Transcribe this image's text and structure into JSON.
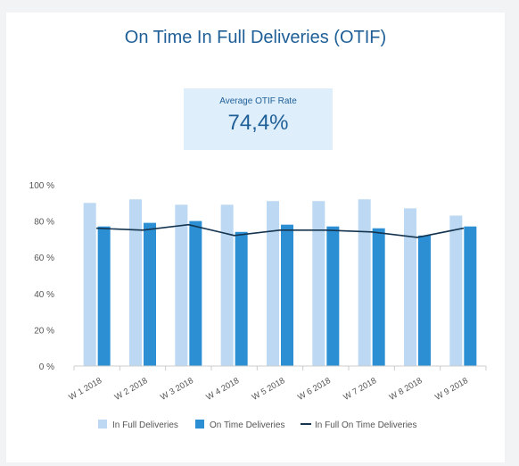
{
  "title": "On Time In Full Deliveries (OTIF)",
  "kpi": {
    "label": "Average OTIF Rate",
    "value": "74,4%"
  },
  "colors": {
    "in_full": "#bcd8f2",
    "on_time": "#2c8fd4",
    "otif_line": "#14344f",
    "title": "#1f5f97",
    "axis_text": "#555555",
    "kpi_bg": "#deeefb"
  },
  "chart_data": {
    "type": "bar",
    "categories": [
      "W 1 2018",
      "W 2 2018",
      "W 3 2018",
      "W 4 2018",
      "W 5 2018",
      "W 6 2018",
      "W 7 2018",
      "W 8 2018",
      "W 9 2018"
    ],
    "series": [
      {
        "name": "In Full Deliveries",
        "type": "bar",
        "values": [
          90,
          92,
          89,
          89,
          91,
          91,
          92,
          87,
          83
        ]
      },
      {
        "name": "On Time Deliveries",
        "type": "bar",
        "values": [
          77,
          79,
          80,
          74,
          78,
          77,
          76,
          72,
          77
        ]
      },
      {
        "name": "In Full On Time Deliveries",
        "type": "line",
        "values": [
          76,
          75,
          78,
          72,
          75,
          75,
          74,
          71,
          76
        ]
      }
    ],
    "yticks": [
      "0 %",
      "20 %",
      "40 %",
      "60 %",
      "80 %",
      "100 %"
    ],
    "ylim": [
      0,
      100
    ],
    "legend_position": "bottom",
    "grid": false
  }
}
